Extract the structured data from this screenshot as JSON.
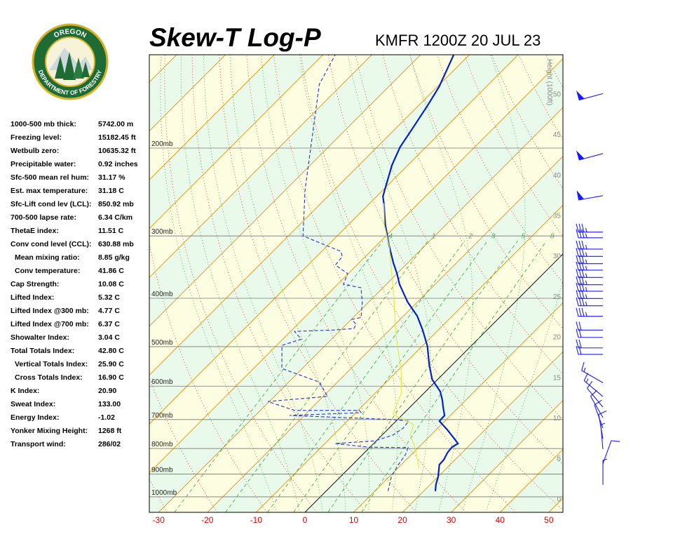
{
  "logo": {
    "top_text": "OREGON",
    "bottom_text": "DEPARTMENT OF FORESTRY"
  },
  "indices": [
    [
      "1000-500 mb thick:",
      "5742.00 m"
    ],
    [
      "Freezing level:",
      "15182.45 ft"
    ],
    [
      "Wetbulb zero:",
      "10635.32 ft"
    ],
    [
      "Precipitable water:",
      "0.92 inches"
    ],
    [
      "Sfc-500 mean rel hum:",
      "31.17 %"
    ],
    [
      "Est. max temperature:",
      "31.18 C"
    ],
    [
      "Sfc-Lift cond lev (LCL):",
      "850.92 mb"
    ],
    [
      "700-500 lapse rate:",
      "6.34 C/km"
    ],
    [
      "ThetaE index:",
      "11.51 C"
    ],
    [
      "Conv cond level (CCL):",
      "630.88 mb"
    ],
    [
      "Mean mixing ratio:",
      "8.85 g/kg"
    ],
    [
      "Conv temperature:",
      "41.86 C"
    ],
    [
      "Cap Strength:",
      "10.08 C"
    ],
    [
      "Lifted Index:",
      "5.32 C"
    ],
    [
      "Lifted Index @300 mb:",
      "4.77 C"
    ],
    [
      "Lifted Index @700 mb:",
      "6.37 C"
    ],
    [
      "Showalter Index:",
      "3.04 C"
    ],
    [
      "Total Totals Index:",
      "42.80 C"
    ],
    [
      "Vertical Totals Index:",
      "25.90 C"
    ],
    [
      "Cross Totals Index:",
      "16.90 C"
    ],
    [
      "K Index:",
      "20.90"
    ],
    [
      "Sweat Index:",
      "133.00"
    ],
    [
      "Energy Index:",
      "-1.02"
    ],
    [
      "Yonker Mixing Height:",
      "1268 ft"
    ],
    [
      "Transport wind:",
      "286/02"
    ]
  ],
  "chart_data": {
    "type": "skewt",
    "title": "Skew-T Log-P",
    "subtitle": "KMFR 1200Z 20 JUL 23",
    "y2_label": "Height (1000ft)",
    "xlim": [
      -31.9,
      52.9
    ],
    "xticks": [
      -30,
      -20,
      -10,
      0,
      10,
      20,
      30,
      40,
      50
    ],
    "ylim": [
      1074,
      130
    ],
    "log_y": true,
    "yticks": [
      {
        "value": 200,
        "label": "200mb"
      },
      {
        "value": 300,
        "label": "300mb"
      },
      {
        "value": 400,
        "label": "400mb"
      },
      {
        "value": 500,
        "label": "500mb"
      },
      {
        "value": 600,
        "label": "600mb"
      },
      {
        "value": 700,
        "label": "700mb"
      },
      {
        "value": 800,
        "label": "800mb"
      },
      {
        "value": 900,
        "label": "900mb"
      },
      {
        "value": 1000,
        "label": "1000mb"
      }
    ],
    "y2lim": [
      -1.7,
      54.8
    ],
    "y2ticks": [
      0,
      5,
      10,
      15,
      20,
      25,
      30,
      35,
      40,
      45,
      50
    ],
    "mixing_ratios": [
      {
        "value": 0.4,
        "label": ".4"
      },
      1,
      2,
      3,
      5,
      8
    ],
    "series": [
      {
        "color": "#0022cc",
        "pressure": [
          974,
          943,
          913,
          862,
          842,
          815,
          795,
          782,
          764,
          733,
          705,
          687,
          661,
          640,
          615,
          582,
          544,
          499,
          463,
          434,
          407,
          394,
          375,
          357,
          340,
          314,
          285,
          258,
          250,
          237,
          216,
          199,
          181,
          164,
          151,
          143,
          130
        ],
        "values": [
          22.4,
          21.1,
          20.1,
          17.8,
          17.7,
          17.0,
          16.8,
          17.3,
          15.5,
          12.2,
          8.9,
          8.8,
          6.8,
          5.2,
          3.0,
          -1.1,
          -4.7,
          -8.9,
          -13.2,
          -17.2,
          -22.0,
          -24.1,
          -27.3,
          -30.0,
          -32.9,
          -37.3,
          -42.4,
          -47.1,
          -48.7,
          -50.4,
          -53.3,
          -55.3,
          -56.7,
          -58.2,
          -59.6,
          -60.9,
          -63.2
        ]
      },
      {
        "color": "#2233dd",
        "dashed": true,
        "pressure": [
          974,
          913,
          862,
          823,
          797,
          795,
          782,
          772,
          752,
          728,
          705,
          700,
          687,
          678,
          671,
          671,
          644,
          629,
          589,
          553,
          497,
          483,
          466,
          463,
          460,
          451,
          441,
          437,
          407,
          381,
          375,
          357,
          343,
          330,
          322,
          300,
          242,
          149,
          130
        ],
        "values": [
          12.7,
          10.5,
          9.4,
          8.8,
          7.9,
          -0.4,
          -7.9,
          -0.3,
          2.2,
          2.9,
          2.6,
          -1.0,
          -23.0,
          -8.9,
          -9.7,
          -23.0,
          -30.3,
          -19.1,
          -23.7,
          -34.2,
          -38.9,
          -36.2,
          -39.2,
          -31.6,
          -27.6,
          -28.0,
          -29.9,
          -28.4,
          -31.3,
          -34.5,
          -38.8,
          -40.1,
          -44.4,
          -44.7,
          -46.1,
          -57.0,
          -66.1,
          -84.7,
          -87.5
        ]
      },
      {
        "color": "#e6e640",
        "pressure": [
          878,
          802,
          752,
          716,
          700,
          682,
          619,
          562,
          478,
          394,
          314,
          285,
          258
        ],
        "values": [
          14.5,
          9.7,
          5.8,
          4.3,
          1.2,
          -2.1,
          -4.7,
          -9.0,
          -17.2,
          -26.3,
          -37.3,
          -42.6,
          -47.1
        ]
      }
    ],
    "winds": {
      "height": [
        50.0,
        42.6,
        37.4,
        32.9,
        32.2,
        30.8,
        29.9,
        29.0,
        28.2,
        27.3,
        26.4,
        25.6,
        24.7,
        23.8,
        22.5,
        20.8,
        19.9,
        18.6,
        17.8,
        14.3,
        12.6,
        11.3,
        10.0,
        8.7,
        7.4,
        6.1,
        4.3,
        1.7
      ],
      "direction": [
        255,
        255,
        260,
        270,
        270,
        270,
        270,
        270,
        270,
        270,
        270,
        270,
        270,
        270,
        270,
        270,
        270,
        270,
        270,
        300,
        310,
        320,
        330,
        340,
        350,
        355,
        20,
        0
      ],
      "speed": [
        50,
        50,
        50,
        35,
        35,
        35,
        35,
        35,
        35,
        35,
        35,
        35,
        35,
        35,
        35,
        20,
        20,
        20,
        20,
        15,
        15,
        10,
        10,
        10,
        10,
        5,
        10,
        5
      ],
      "color": "#1a1aff"
    }
  }
}
